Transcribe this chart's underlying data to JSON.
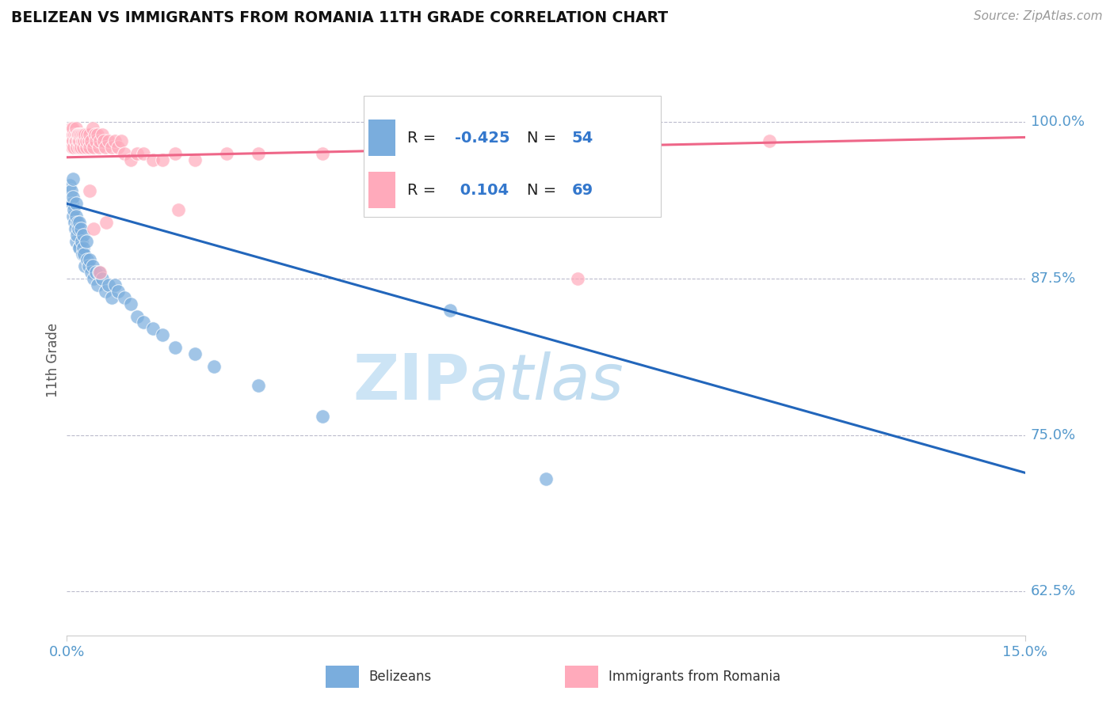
{
  "title": "BELIZEAN VS IMMIGRANTS FROM ROMANIA 11TH GRADE CORRELATION CHART",
  "source_text": "Source: ZipAtlas.com",
  "ylabel": "11th Grade",
  "xlim": [
    0.0,
    15.0
  ],
  "ylim": [
    59.0,
    103.0
  ],
  "yticks": [
    62.5,
    75.0,
    87.5,
    100.0
  ],
  "ytick_labels": [
    "62.5%",
    "75.0%",
    "87.5%",
    "100.0%"
  ],
  "r_belizean": -0.425,
  "n_belizean": 54,
  "r_romania": 0.104,
  "n_romania": 69,
  "belizean_color": "#7aaddd",
  "romania_color": "#ffaabb",
  "belizean_line_color": "#2266bb",
  "romania_line_color": "#ee6688",
  "background_color": "#ffffff",
  "watermark_color": "#cce8f5",
  "legend_label_belizean": "Belizeans",
  "legend_label_romania": "Immigrants from Romania",
  "belizean_line_x0": 0.0,
  "belizean_line_y0": 93.5,
  "belizean_line_x1": 15.0,
  "belizean_line_y1": 72.0,
  "romania_line_x0": 0.0,
  "romania_line_y0": 97.2,
  "romania_line_x1": 15.0,
  "romania_line_y1": 98.8,
  "belizean_x": [
    0.05,
    0.07,
    0.08,
    0.09,
    0.1,
    0.1,
    0.11,
    0.12,
    0.13,
    0.14,
    0.15,
    0.15,
    0.16,
    0.17,
    0.18,
    0.19,
    0.2,
    0.2,
    0.22,
    0.23,
    0.24,
    0.25,
    0.26,
    0.27,
    0.28,
    0.3,
    0.32,
    0.34,
    0.36,
    0.38,
    0.4,
    0.42,
    0.45,
    0.48,
    0.5,
    0.55,
    0.6,
    0.65,
    0.7,
    0.75,
    0.8,
    0.9,
    1.0,
    1.1,
    1.2,
    1.35,
    1.5,
    1.7,
    2.0,
    2.3,
    3.0,
    4.0,
    6.0,
    7.5
  ],
  "belizean_y": [
    95.0,
    94.5,
    93.5,
    95.5,
    94.0,
    92.5,
    93.0,
    92.0,
    91.5,
    93.5,
    92.5,
    90.5,
    91.0,
    92.0,
    91.5,
    90.0,
    92.0,
    90.0,
    91.5,
    90.5,
    89.5,
    91.0,
    90.0,
    89.5,
    88.5,
    90.5,
    89.0,
    88.5,
    89.0,
    88.0,
    88.5,
    87.5,
    88.0,
    87.0,
    88.0,
    87.5,
    86.5,
    87.0,
    86.0,
    87.0,
    86.5,
    86.0,
    85.5,
    84.5,
    84.0,
    83.5,
    83.0,
    82.0,
    81.5,
    80.5,
    79.0,
    76.5,
    85.0,
    71.5
  ],
  "romania_x": [
    0.04,
    0.06,
    0.07,
    0.08,
    0.09,
    0.1,
    0.1,
    0.11,
    0.12,
    0.13,
    0.14,
    0.15,
    0.15,
    0.16,
    0.17,
    0.18,
    0.18,
    0.19,
    0.2,
    0.21,
    0.22,
    0.23,
    0.24,
    0.25,
    0.26,
    0.27,
    0.28,
    0.3,
    0.3,
    0.32,
    0.34,
    0.35,
    0.36,
    0.38,
    0.4,
    0.42,
    0.44,
    0.46,
    0.48,
    0.5,
    0.52,
    0.55,
    0.58,
    0.6,
    0.65,
    0.7,
    0.75,
    0.8,
    0.85,
    0.9,
    1.0,
    1.1,
    1.2,
    1.35,
    1.5,
    1.7,
    2.0,
    2.5,
    3.0,
    4.0,
    5.5,
    8.0,
    9.0,
    11.0,
    0.62,
    1.75,
    0.35,
    0.42,
    0.52
  ],
  "romania_y": [
    99.0,
    98.5,
    99.5,
    98.0,
    99.0,
    98.5,
    99.5,
    98.0,
    99.0,
    98.5,
    99.0,
    98.5,
    99.5,
    98.0,
    99.0,
    98.5,
    99.0,
    98.0,
    98.5,
    99.0,
    98.0,
    99.0,
    98.5,
    99.0,
    98.0,
    98.5,
    99.0,
    98.0,
    98.5,
    99.0,
    98.5,
    99.0,
    98.0,
    98.5,
    99.5,
    98.0,
    99.0,
    98.5,
    99.0,
    98.0,
    98.5,
    99.0,
    98.5,
    98.0,
    98.5,
    98.0,
    98.5,
    98.0,
    98.5,
    97.5,
    97.0,
    97.5,
    97.5,
    97.0,
    97.0,
    97.5,
    97.0,
    97.5,
    97.5,
    97.5,
    97.0,
    87.5,
    97.5,
    98.5,
    92.0,
    93.0,
    94.5,
    91.5,
    88.0
  ]
}
